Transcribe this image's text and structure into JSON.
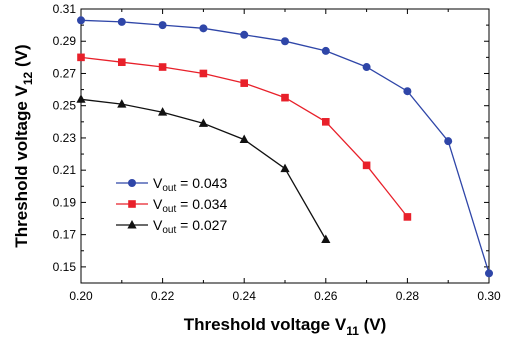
{
  "chart_data": {
    "type": "line",
    "xlabel": {
      "main": "Threshold voltage V",
      "sub": "11",
      "unit": " (V)"
    },
    "ylabel": {
      "main": "Threshold voltage V",
      "sub": "12",
      "unit": " (V)"
    },
    "xlim": [
      0.2,
      0.3
    ],
    "ylim": [
      0.14,
      0.31
    ],
    "xticks": [
      "0.20",
      "0.22",
      "0.24",
      "0.26",
      "0.28",
      "0.30"
    ],
    "yticks": [
      "0.15",
      "0.17",
      "0.19",
      "0.21",
      "0.23",
      "0.25",
      "0.27",
      "0.29",
      "0.31"
    ],
    "grid": false,
    "legend_position": "center-left",
    "series": [
      {
        "name": {
          "main": "V",
          "sub": "out",
          "rest": " = 0.043"
        },
        "color": "#2f46a8",
        "marker": "circle",
        "x": [
          0.2,
          0.21,
          0.22,
          0.23,
          0.24,
          0.25,
          0.26,
          0.27,
          0.28,
          0.29,
          0.3
        ],
        "y": [
          0.303,
          0.302,
          0.3,
          0.298,
          0.294,
          0.29,
          0.284,
          0.274,
          0.259,
          0.228,
          0.146
        ]
      },
      {
        "name": {
          "main": "V",
          "sub": "out",
          "rest": " = 0.034"
        },
        "color": "#e8202a",
        "marker": "square",
        "x": [
          0.2,
          0.21,
          0.22,
          0.23,
          0.24,
          0.25,
          0.26,
          0.27,
          0.28
        ],
        "y": [
          0.28,
          0.277,
          0.274,
          0.27,
          0.264,
          0.255,
          0.24,
          0.213,
          0.181
        ]
      },
      {
        "name": {
          "main": "V",
          "sub": "out",
          "rest": " = 0.027"
        },
        "color": "#111111",
        "marker": "triangle",
        "x": [
          0.2,
          0.21,
          0.22,
          0.23,
          0.24,
          0.25,
          0.26
        ],
        "y": [
          0.254,
          0.251,
          0.246,
          0.239,
          0.229,
          0.211,
          0.167
        ]
      }
    ]
  }
}
